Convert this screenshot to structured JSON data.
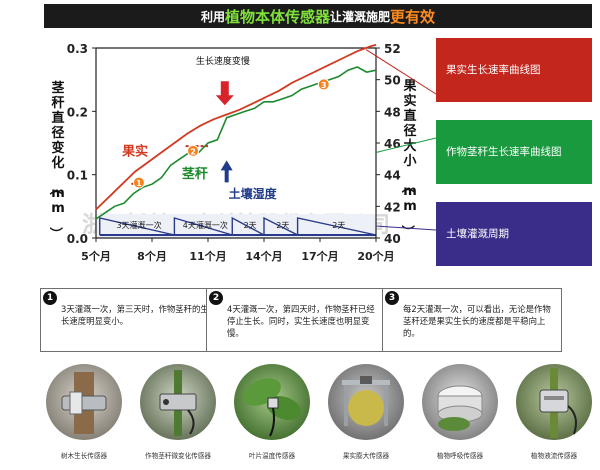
{
  "banner": {
    "part1": "利用",
    "part2": "植物本体传感器",
    "part3": "让灌溉施肥",
    "part4": "更有效"
  },
  "chart_data": {
    "type": "line",
    "xlabel": "",
    "ylabel": "茎秆直径变化（mm）",
    "y2label": "果实直径大小（mm）",
    "x_ticks": [
      "5个月",
      "8个月",
      "11个月",
      "14个月",
      "17个月",
      "20个月"
    ],
    "xlim": [
      5,
      20
    ],
    "ylim": [
      0.0,
      0.3
    ],
    "y_ticks": [
      "0.0",
      "0.1",
      "0.2",
      "0.3"
    ],
    "y2lim": [
      40,
      52
    ],
    "y2_ticks": [
      "40",
      "42",
      "44",
      "46",
      "48",
      "50",
      "52"
    ],
    "series": [
      {
        "name": "果实",
        "axis": "right",
        "color": "#d23a22",
        "x": [
          5.0,
          5.7,
          6.4,
          7.1,
          7.8,
          8.5,
          9.2,
          9.9,
          10.6,
          11.3,
          12.0,
          12.7,
          13.4,
          14.1,
          14.8,
          15.5,
          16.2,
          16.9,
          17.6,
          18.3,
          19.0,
          19.7,
          20.0
        ],
        "y": [
          41.8,
          42.6,
          43.4,
          44.2,
          44.8,
          45.4,
          46.0,
          46.6,
          47.1,
          47.5,
          47.8,
          48.1,
          48.5,
          48.9,
          49.3,
          49.8,
          50.2,
          50.6,
          51.0,
          51.4,
          51.8,
          52.1,
          52.2
        ]
      },
      {
        "name": "茎秆",
        "axis": "left",
        "color": "#1e8a2e",
        "x": [
          5.0,
          5.5,
          6.0,
          6.5,
          7.0,
          7.5,
          8.0,
          8.5,
          9.0,
          9.5,
          10.0,
          10.5,
          11.0,
          11.5,
          12.0,
          12.5,
          13.0,
          13.5,
          14.0,
          14.5,
          15.0,
          15.5,
          16.0,
          16.5,
          17.0,
          17.5,
          18.0,
          18.5,
          19.0,
          19.5,
          20.0
        ],
        "y": [
          0.03,
          0.04,
          0.05,
          0.055,
          0.07,
          0.08,
          0.085,
          0.095,
          0.115,
          0.125,
          0.135,
          0.135,
          0.15,
          0.155,
          0.19,
          0.195,
          0.2,
          0.205,
          0.215,
          0.215,
          0.22,
          0.225,
          0.235,
          0.24,
          0.245,
          0.25,
          0.255,
          0.265,
          0.27,
          0.262,
          0.265
        ]
      }
    ],
    "irrigation_color": "#2a3a8a",
    "irrigation_segments": [
      {
        "label": "3天灌溉一次",
        "x_start": 5.2,
        "x_end": 9.2
      },
      {
        "label": "4天灌溉一次",
        "x_start": 9.2,
        "x_end": 12.3
      },
      {
        "label": "2天",
        "x_start": 12.3,
        "x_end": 14.0
      },
      {
        "label": "2天",
        "x_start": 14.0,
        "x_end": 15.8
      },
      {
        "label": "2天",
        "x_start": 15.8,
        "x_end": 20.0
      }
    ],
    "annotations": [
      {
        "text": "生长速度变慢",
        "x": 11.8,
        "y_right": 51.0
      },
      {
        "text": "土壤湿度",
        "x": 11.9,
        "y_right": 43.4
      }
    ],
    "markers": [
      {
        "label": "1",
        "x": 7.3,
        "y_right": 43.5,
        "color": "#f58220"
      },
      {
        "label": "2",
        "x": 10.2,
        "y_right": 45.5,
        "color": "#f58220"
      },
      {
        "label": "3",
        "x": 17.2,
        "y_right": 49.7,
        "color": "#f58220"
      }
    ],
    "grid": false
  },
  "side_boxes": [
    {
      "text": "果实生长速率曲线图",
      "color": "#c3261c"
    },
    {
      "text": "作物茎秆生长速率曲线图",
      "color": "#1a9a3f"
    },
    {
      "text": "土壤灌溉周期",
      "color": "#3a2d8a"
    }
  ],
  "notes": [
    {
      "num": "1",
      "text": "3天灌溉一次，第三天时，作物茎秆的生长速度明显变小。"
    },
    {
      "num": "2",
      "text": "4天灌溉一次，第四天时，作物茎秆已经停止生长。同时，实生长速度也明显变慢。"
    },
    {
      "num": "3",
      "text": "每2天灌溉一次，可以看出，无论是作物茎秆还是果实生长的速度都是平稳向上的。"
    }
  ],
  "sensors": [
    {
      "caption": "树木生长传感器",
      "icon": "tree-growth-sensor-icon"
    },
    {
      "caption": "作物茎秆微变化传感器",
      "icon": "stem-microvariation-sensor-icon"
    },
    {
      "caption": "叶片温度传感器",
      "icon": "leaf-temperature-sensor-icon"
    },
    {
      "caption": "果实膨大传感器",
      "icon": "fruit-expansion-sensor-icon"
    },
    {
      "caption": "植物呼吸传感器",
      "icon": "plant-respiration-sensor-icon"
    },
    {
      "caption": "植物液流传感器",
      "icon": "sap-flow-sensor-icon"
    }
  ]
}
